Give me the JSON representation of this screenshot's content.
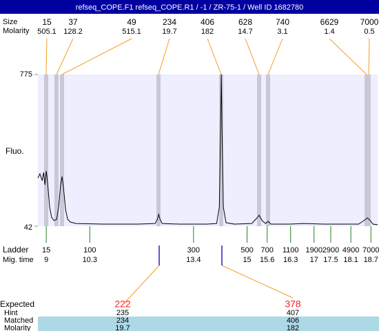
{
  "title": "refseq_COPE.F1  refseq_COPE.R1 / -1 / ZR-75-1 / Well ID 1682780",
  "peak_labels": {
    "size": "Size",
    "molarity": "Molarity"
  },
  "peaks": [
    {
      "size": 15,
      "molarity": 505.1
    },
    {
      "size": 37,
      "molarity": 128.2
    },
    {
      "size": 49,
      "molarity": 515.1
    },
    {
      "size": 234,
      "molarity": 19.7
    },
    {
      "size": 406,
      "molarity": 182
    },
    {
      "size": 628,
      "molarity": 14.7
    },
    {
      "size": 740,
      "molarity": 3.1
    },
    {
      "size": 6629,
      "molarity": 1.4
    },
    {
      "size": 7000,
      "molarity": 0.5
    }
  ],
  "chart_data": {
    "type": "line",
    "y_label": "Fluo.",
    "color": "#000000",
    "ylim": [
      42,
      775
    ],
    "yticks": [
      42,
      775
    ],
    "xlim": [
      8.75,
      18.9
    ],
    "x": [
      8.75,
      8.81,
      8.88,
      8.92,
      8.96,
      9.0,
      9.04,
      9.1,
      9.16,
      9.23,
      9.31,
      9.37,
      9.43,
      9.47,
      9.51,
      9.58,
      9.64,
      9.72,
      9.89,
      10.71,
      11.74,
      12.25,
      12.32,
      12.36,
      12.4,
      12.46,
      12.97,
      13.8,
      14.09,
      14.17,
      14.21,
      14.23,
      14.25,
      14.29,
      14.37,
      14.62,
      15.14,
      15.28,
      15.36,
      15.45,
      15.55,
      15.63,
      15.71,
      16.27,
      16.68,
      17.3,
      18.33,
      18.49,
      18.6,
      18.68,
      18.76,
      18.9
    ],
    "values": [
      275,
      295,
      262,
      302,
      242,
      309,
      252,
      135,
      85,
      69,
      75,
      135,
      242,
      282,
      235,
      119,
      75,
      62,
      55,
      52,
      52,
      55,
      75,
      99,
      75,
      55,
      52,
      52,
      55,
      135,
      535,
      775,
      535,
      135,
      59,
      52,
      55,
      79,
      95,
      69,
      55,
      65,
      52,
      52,
      55,
      52,
      52,
      69,
      82,
      69,
      52,
      49
    ]
  },
  "ladder": {
    "label": "Ladder",
    "time_label": "Mig. time",
    "sizes": [
      15,
      100,
      300,
      500,
      700,
      1100,
      1900,
      2900,
      4900,
      7000
    ],
    "times": [
      9,
      10.3,
      13.4,
      15,
      15.6,
      16.3,
      17,
      17.5,
      18.1,
      18.7
    ]
  },
  "expected": {
    "labels": {
      "expected": "Expected",
      "hint": "Hint",
      "matched": "Matched",
      "molarity": "Molarity"
    },
    "columns": [
      {
        "expected": 222,
        "hint": 235,
        "matched": 234,
        "molarity": 19.7
      },
      {
        "expected": 378,
        "hint": 407,
        "matched": 406,
        "molarity": 182
      }
    ]
  }
}
